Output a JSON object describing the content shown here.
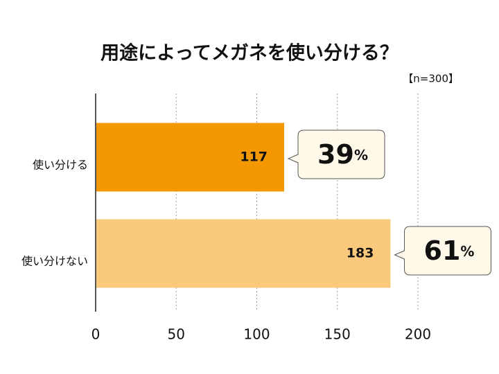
{
  "chart_data": {
    "type": "bar",
    "orientation": "horizontal",
    "title": "用途によってメガネを使い分ける？",
    "subtitle": "【n=300】",
    "categories": [
      "使い分ける",
      "使い分けない"
    ],
    "values": [
      117,
      183
    ],
    "colors": [
      "#f39800",
      "#fac97c"
    ],
    "percents": [
      39,
      61
    ],
    "percent_unit": "%",
    "xlim": [
      0,
      200
    ],
    "xticks": [
      0,
      50,
      100,
      150,
      200
    ],
    "grid": true
  }
}
